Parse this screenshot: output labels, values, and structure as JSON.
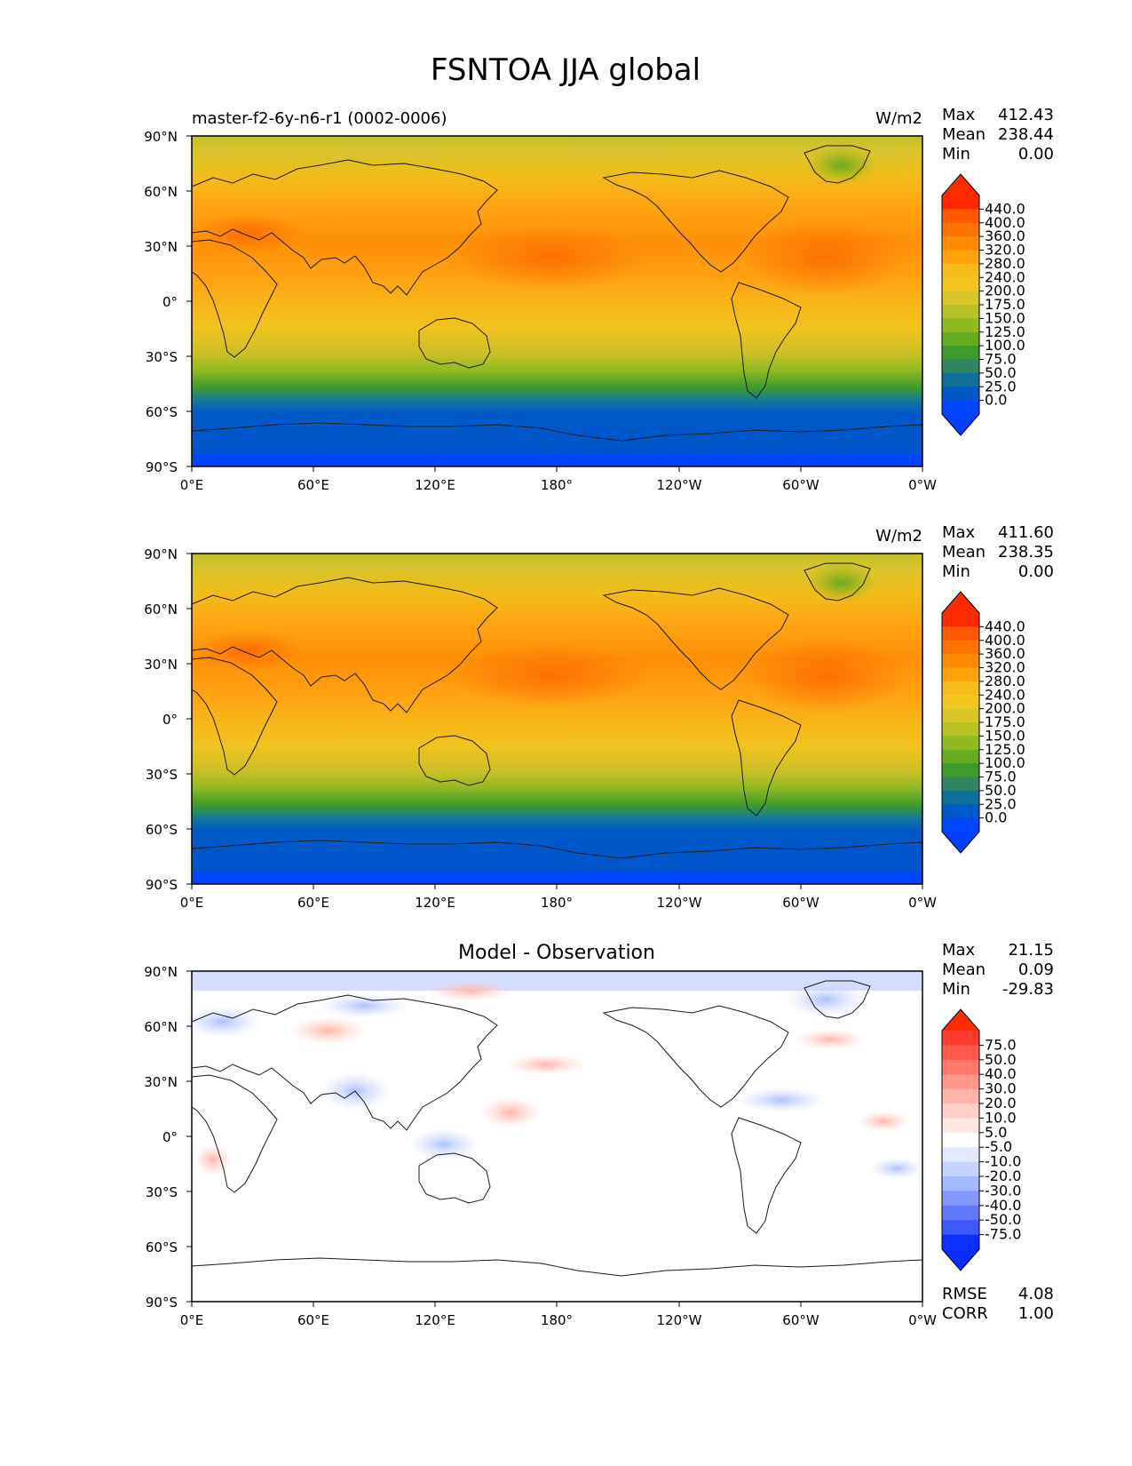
{
  "figure": {
    "title": "FSNTOA JJA global"
  },
  "panels": [
    {
      "id": "test",
      "left_title": "master-f2-6y-n6-r1 (0002-0006)",
      "center_title": "",
      "units": "W/m2",
      "stats": [
        {
          "label": "Max",
          "value": "412.43"
        },
        {
          "label": "Mean",
          "value": "238.44"
        },
        {
          "label": "Min",
          "value": "0.00"
        }
      ],
      "colorbar": {
        "labels": [
          "440.0",
          "400.0",
          "360.0",
          "320.0",
          "280.0",
          "240.0",
          "200.0",
          "175.0",
          "150.0",
          "125.0",
          "100.0",
          "75.0",
          "50.0",
          "25.0",
          "0.0"
        ],
        "colors": [
          "#ff2a00",
          "#ff5a00",
          "#ff7300",
          "#ff8c00",
          "#ffa30a",
          "#f7bb1a",
          "#f2c61f",
          "#d6c628",
          "#b6c226",
          "#8fba21",
          "#64ad21",
          "#3d9b2d",
          "#2f8564",
          "#0f6f98",
          "#0059c8",
          "#0045ff"
        ],
        "top_extend": "#ff2a00",
        "bottom_extend": "#0540ff"
      }
    },
    {
      "id": "reference",
      "left_title": "",
      "center_title": "",
      "units": "W/m2",
      "stats": [
        {
          "label": "Max",
          "value": "411.60"
        },
        {
          "label": "Mean",
          "value": "238.35"
        },
        {
          "label": "Min",
          "value": "0.00"
        }
      ],
      "colorbar": {
        "labels": [
          "440.0",
          "400.0",
          "360.0",
          "320.0",
          "280.0",
          "240.0",
          "200.0",
          "175.0",
          "150.0",
          "125.0",
          "100.0",
          "75.0",
          "50.0",
          "25.0",
          "0.0"
        ],
        "colors": [
          "#ff2a00",
          "#ff5a00",
          "#ff7300",
          "#ff8c00",
          "#ffa30a",
          "#f7bb1a",
          "#f2c61f",
          "#d6c628",
          "#b6c226",
          "#8fba21",
          "#64ad21",
          "#3d9b2d",
          "#2f8564",
          "#0f6f98",
          "#0059c8",
          "#0045ff"
        ],
        "top_extend": "#ff2a00",
        "bottom_extend": "#0540ff"
      }
    },
    {
      "id": "difference",
      "left_title": "",
      "center_title": "Model - Observation",
      "units": "",
      "stats": [
        {
          "label": "Max",
          "value": "21.15"
        },
        {
          "label": "Mean",
          "value": "0.09"
        },
        {
          "label": "Min",
          "value": "-29.83"
        }
      ],
      "bottom_stats": [
        {
          "label": "RMSE",
          "value": "4.08"
        },
        {
          "label": "CORR",
          "value": "1.00"
        }
      ],
      "colorbar": {
        "labels": [
          "75.0",
          "50.0",
          "40.0",
          "30.0",
          "20.0",
          "10.0",
          "5.0",
          "-5.0",
          "-10.0",
          "-20.0",
          "-30.0",
          "-40.0",
          "-50.0",
          "-75.0"
        ],
        "colors": [
          "#ff3b2e",
          "#ff5a4a",
          "#ff7a6b",
          "#ff978a",
          "#ffb4aa",
          "#ffd0ca",
          "#ffe8e4",
          "#ffffff",
          "#e2e8ff",
          "#c6d2ff",
          "#a6b8ff",
          "#8499ff",
          "#6079ff",
          "#3c58ff",
          "#0a30ff"
        ],
        "top_extend": "#ff2a00",
        "bottom_extend": "#0b2dff"
      }
    }
  ],
  "axes": {
    "y_ticks": [
      "90°N",
      "60°N",
      "30°N",
      "0°",
      "30°S",
      "60°S",
      "90°S"
    ],
    "x_ticks": [
      "0°E",
      "60°E",
      "120°E",
      "180°",
      "120°W",
      "60°W",
      "0°W"
    ]
  }
}
